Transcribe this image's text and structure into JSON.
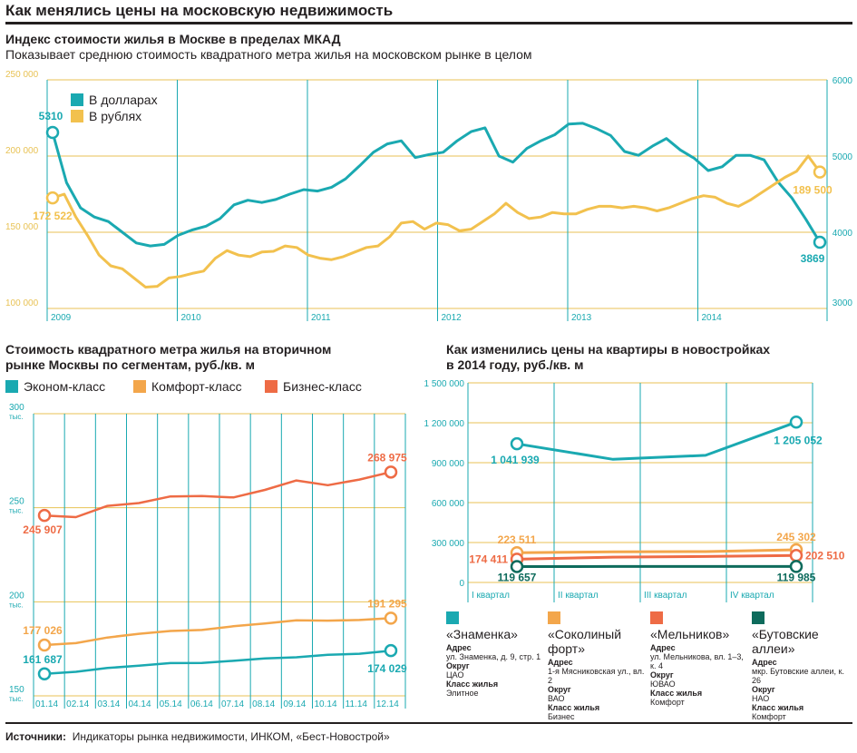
{
  "title": "Как менялись цены на московскую недвижимость",
  "chart1": {
    "title": "Индекс стоимости жилья в Москве в пределах МКАД",
    "subtitle": "Показывает среднюю стоимость квадратного метра жилья на московском рынке в целом",
    "legend": [
      "В долларах",
      "В рублях"
    ]
  },
  "chart2": {
    "title_line1": "Стоимость квадратного метра жилья на вторичном",
    "title_line2": "рынке Москвы по сегментам, руб./кв. м",
    "legend": [
      "Эконом-класс",
      "Комфорт-класс",
      "Бизнес-класс"
    ]
  },
  "chart3": {
    "title_line1": "Как изменились цены на квартиры в новостройках",
    "title_line2": "в 2014 году, руб./кв. м",
    "cards": [
      {
        "name": "«Знаменка»",
        "addr_label": "Адрес",
        "addr": "ул. Знаменка, д. 9, стр. 1",
        "okrug_label": "Округ",
        "okrug": "ЦАО",
        "class_label": "Класс жилья",
        "class": "Элитное"
      },
      {
        "name": "«Соколиный форт»",
        "addr_label": "Адрес",
        "addr": "1-я Мясниковская ул., вл. 2",
        "okrug_label": "Округ",
        "okrug": "ВАО",
        "class_label": "Класс жилья",
        "class": "Бизнес"
      },
      {
        "name": "«Мельников»",
        "addr_label": "Адрес",
        "addr": "ул. Мельникова, вл. 1–3, к. 4",
        "okrug_label": "Округ",
        "okrug": "ЮВАО",
        "class_label": "Класс жилья",
        "class": "Комфорт"
      },
      {
        "name": "«Бутовские аллеи»",
        "addr_label": "Адрес",
        "addr": "мкр. Бутовские аллеи, к. 26",
        "okrug_label": "Округ",
        "okrug": "НАО",
        "class_label": "Класс жилья",
        "class": "Комфорт"
      }
    ]
  },
  "sources_label": "Источники:",
  "sources": "Индикаторы рынка недвижимости, ИНКОМ, «Бест-Новострой»",
  "colors": {
    "teal": "#1aa9b1",
    "yellow": "#f2c14e",
    "orange": "#f3a64b",
    "red": "#ee6b45",
    "green": "#0e6b5c",
    "grid": "#1aa9b1",
    "gold": "#e8c254"
  },
  "chart_data": [
    {
      "type": "line",
      "title": "Индекс стоимости жилья в Москве в пределах МКАД",
      "x_ticks": [
        "2009",
        "2010",
        "2011",
        "2012",
        "2013",
        "2014"
      ],
      "ylim_left": [
        100000,
        250000
      ],
      "ylim_right": [
        3000,
        6000
      ],
      "left_ticks": [
        "100 000",
        "150 000",
        "200 000",
        "250 000"
      ],
      "right_ticks": [
        "3000",
        "4000",
        "5000",
        "6000"
      ],
      "series": [
        {
          "name": "В долларах",
          "axis": "right",
          "start_label": "5310",
          "end_label": "3869",
          "values": [
            5310,
            4650,
            4320,
            4200,
            4140,
            4000,
            3860,
            3820,
            3840,
            3960,
            4030,
            4080,
            4180,
            4360,
            4420,
            4390,
            4430,
            4500,
            4560,
            4540,
            4590,
            4700,
            4870,
            5050,
            5160,
            5200,
            4980,
            5020,
            5050,
            5200,
            5320,
            5370,
            5000,
            4920,
            5100,
            5200,
            5280,
            5420,
            5430,
            5360,
            5270,
            5060,
            5010,
            5130,
            5230,
            5080,
            4970,
            4810,
            4860,
            5010,
            5010,
            4950,
            4660,
            4450,
            4170,
            3869
          ]
        },
        {
          "name": "В рублях",
          "axis": "left",
          "start_label": "172 522",
          "end_label": "189 500",
          "values": [
            172522,
            175000,
            160000,
            148000,
            135000,
            128000,
            126000,
            120000,
            114000,
            114500,
            120000,
            121000,
            123000,
            124500,
            133000,
            138000,
            135000,
            134000,
            137000,
            137500,
            141000,
            140000,
            135000,
            133000,
            132000,
            134000,
            137000,
            140000,
            141000,
            147000,
            156000,
            157000,
            152000,
            156000,
            155000,
            151000,
            152000,
            157000,
            162000,
            169000,
            163000,
            159000,
            160000,
            163000,
            162000,
            162000,
            165000,
            167000,
            167000,
            166000,
            167000,
            166000,
            164000,
            166000,
            169000,
            172000,
            174000,
            173000,
            169000,
            167000,
            171000,
            176000,
            181000,
            186000,
            190000,
            200000,
            189500
          ]
        }
      ]
    },
    {
      "type": "line",
      "title": "Стоимость квадратного метра жилья на вторичном рынке Москвы по сегментам, руб./кв. м",
      "categories": [
        "01.14",
        "02.14",
        "03.14",
        "04.14",
        "05.14",
        "06.14",
        "07.14",
        "08.14",
        "09.14",
        "10.14",
        "11.14",
        "12.14"
      ],
      "ylim": [
        150000,
        300000
      ],
      "y_ticks": [
        "150 тыс.",
        "200 тыс.",
        "250 тыс.",
        "300 тыс."
      ],
      "series": [
        {
          "name": "Эконом-класс",
          "start_label": "161 687",
          "end_label": "174 029",
          "values": [
            161687,
            162800,
            164800,
            166000,
            167400,
            167500,
            168600,
            169900,
            170500,
            171800,
            172400,
            174029
          ]
        },
        {
          "name": "Комфорт-класс",
          "start_label": "177 026",
          "end_label": "191 295",
          "values": [
            177026,
            178000,
            181000,
            183000,
            184500,
            185000,
            187000,
            188500,
            190200,
            190000,
            190300,
            191295
          ]
        },
        {
          "name": "Бизнес-класс",
          "start_label": "245 907",
          "end_label": "268 975",
          "values": [
            245907,
            245000,
            251000,
            252500,
            256000,
            256200,
            255500,
            259500,
            264500,
            262000,
            265000,
            268975
          ]
        }
      ]
    },
    {
      "type": "line",
      "title": "Как изменились цены на квартиры в новостройках в 2014 году, руб./кв. м",
      "categories": [
        "I квартал",
        "II квартал",
        "III квартал",
        "IV квартал"
      ],
      "ylim": [
        0,
        1500000
      ],
      "y_ticks": [
        "0",
        "300 000",
        "600 000",
        "900 000",
        "1 200 000",
        "1 500 000"
      ],
      "series": [
        {
          "name": "«Знаменка»",
          "start_label": "1 041 939",
          "end_label": "1 205 052",
          "values": [
            1041939,
            925000,
            955000,
            1205052
          ]
        },
        {
          "name": "«Соколиный форт»",
          "start_label": "223 511",
          "end_label": "245 302",
          "values": [
            223511,
            230000,
            232000,
            245302
          ]
        },
        {
          "name": "«Мельников»",
          "start_label": "174 411",
          "end_label": "202 510",
          "values": [
            174411,
            190000,
            195000,
            202510
          ]
        },
        {
          "name": "«Бутовские аллеи»",
          "start_label": "119 657",
          "end_label": "119 985",
          "values": [
            119657,
            120000,
            120000,
            119985
          ]
        }
      ]
    }
  ]
}
